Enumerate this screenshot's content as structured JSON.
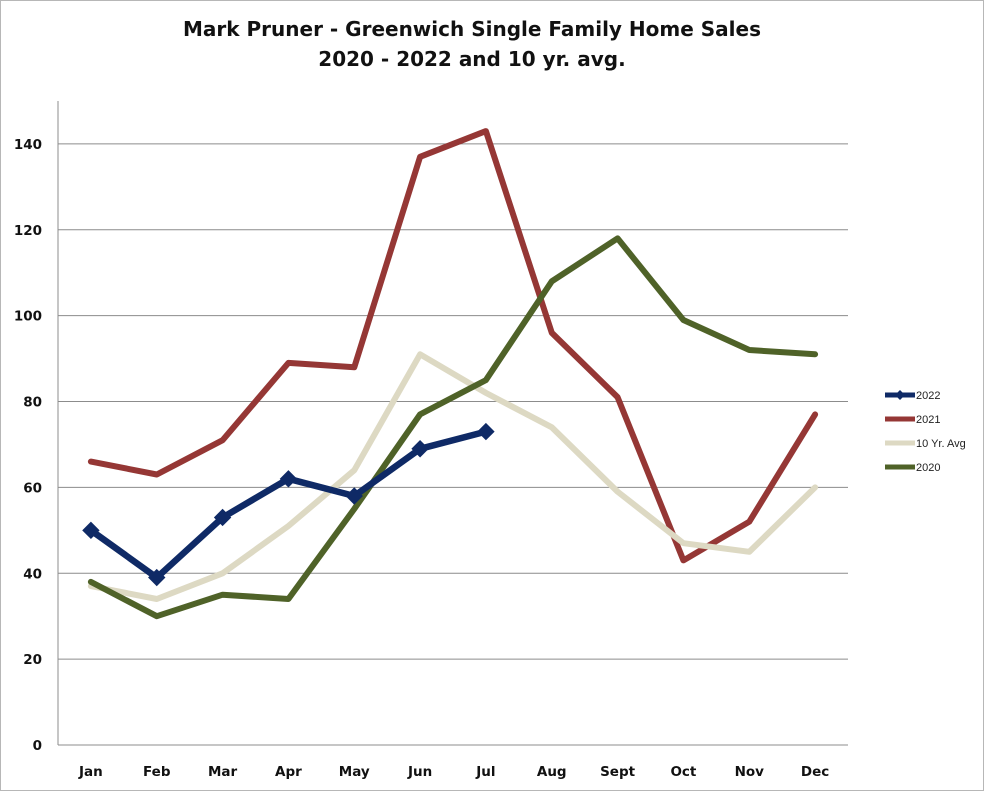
{
  "chart_data": {
    "type": "line",
    "title": "Mark Pruner - Greenwich Single Family Home Sales",
    "subtitle": "2020 - 2022 and 10 yr. avg.",
    "categories": [
      "Jan",
      "Feb",
      "Mar",
      "Apr",
      "May",
      "Jun",
      "Jul",
      "Aug",
      "Sept",
      "Oct",
      "Nov",
      "Dec"
    ],
    "ylim": [
      0,
      150
    ],
    "yticks": [
      0,
      20,
      40,
      60,
      80,
      100,
      120,
      140
    ],
    "grid": true,
    "legend_position": "right",
    "series": [
      {
        "name": "2022",
        "color": "#0f2a66",
        "marker": "diamond",
        "values": [
          50,
          39,
          53,
          62,
          58,
          69,
          73,
          null,
          null,
          null,
          null,
          null
        ]
      },
      {
        "name": "2021",
        "color": "#953735",
        "marker": "none",
        "values": [
          66,
          63,
          71,
          89,
          88,
          137,
          143,
          96,
          81,
          43,
          52,
          77
        ]
      },
      {
        "name": "10 Yr. Avg",
        "color": "#ddd9c3",
        "marker": "none",
        "values": [
          37,
          34,
          40,
          51,
          64,
          91,
          82,
          74,
          59,
          47,
          45,
          60
        ]
      },
      {
        "name": "2020",
        "color": "#4f6228",
        "marker": "none",
        "values": [
          38,
          30,
          35,
          34,
          55,
          77,
          85,
          108,
          118,
          99,
          92,
          91
        ]
      }
    ]
  }
}
